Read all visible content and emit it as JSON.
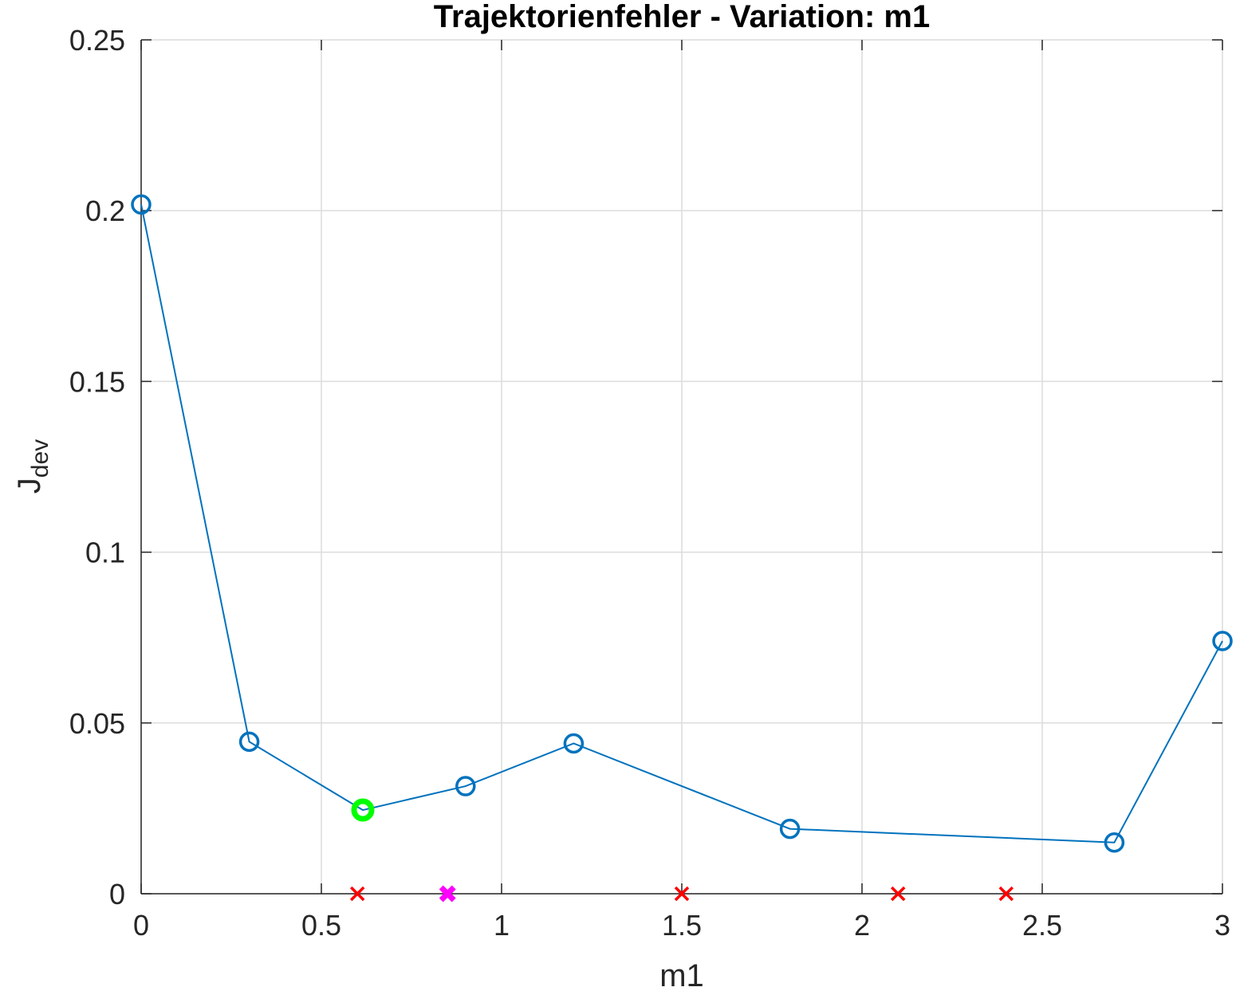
{
  "chart_data": {
    "type": "line",
    "title": "Trajektorienfehler - Variation: m1",
    "xlabel": "m1",
    "ylabel": "J",
    "ylabel_subscript": "dev",
    "xlim": [
      0,
      3
    ],
    "ylim": [
      0,
      0.25
    ],
    "x_ticks": [
      "0",
      "0.5",
      "1",
      "1.5",
      "2",
      "2.5",
      "3"
    ],
    "x_tick_values": [
      0,
      0.5,
      1,
      1.5,
      2,
      2.5,
      3
    ],
    "y_ticks": [
      "0",
      "0.05",
      "0.1",
      "0.15",
      "0.2",
      "0.25"
    ],
    "y_tick_values": [
      0,
      0.05,
      0.1,
      0.15,
      0.2,
      0.25
    ],
    "grid": true,
    "series": [
      {
        "x": [
          0,
          0.3,
          0.615,
          0.9,
          1.2,
          1.8,
          2.7,
          3.0
        ],
        "y": [
          0.2018,
          0.0445,
          0.0245,
          0.0315,
          0.044,
          0.019,
          0.015,
          0.074
        ],
        "color": "#0072BD",
        "marker": "circle"
      }
    ],
    "highlight_point": {
      "x": 0.615,
      "y": 0.0245,
      "color": "#00FF00",
      "marker": "circle"
    },
    "failed_points": {
      "x": [
        0.6,
        1.5,
        2.1,
        2.4
      ],
      "y": [
        0,
        0,
        0,
        0
      ],
      "color": "#FF0000",
      "marker": "x"
    },
    "nominal_point": {
      "x": 0.85,
      "y": 0,
      "color": "#FF00FF",
      "marker": "x"
    }
  }
}
